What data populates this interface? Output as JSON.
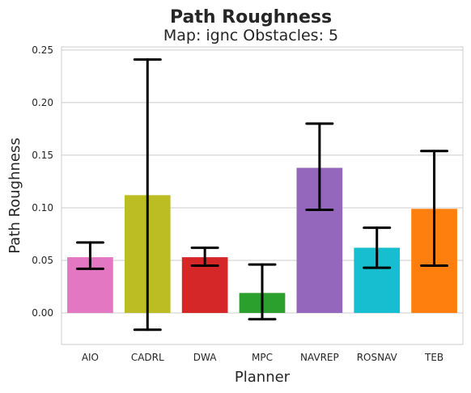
{
  "chart_data": {
    "type": "bar",
    "title": "Path Roughness",
    "subtitle": "Map: ignc Obstacles: 5",
    "xlabel": "Planner",
    "ylabel": "Path Roughness",
    "ylim": [
      -0.03,
      0.253
    ],
    "yticks": [
      "0.00",
      "0.05",
      "0.10",
      "0.15",
      "0.20",
      "0.25"
    ],
    "ytick_values": [
      0.0,
      0.05,
      0.1,
      0.15,
      0.2,
      0.25
    ],
    "grid": true,
    "categories": [
      "AIO",
      "CADRL",
      "DWA",
      "MPC",
      "NAVREP",
      "ROSNAV",
      "TEB"
    ],
    "values": [
      0.053,
      0.112,
      0.053,
      0.019,
      0.138,
      0.062,
      0.099
    ],
    "error_low": [
      0.042,
      -0.016,
      0.045,
      -0.006,
      0.098,
      0.043,
      0.045
    ],
    "error_high": [
      0.067,
      0.241,
      0.062,
      0.046,
      0.18,
      0.081,
      0.154
    ],
    "colors": [
      "#e377c2",
      "#bcbd22",
      "#d62728",
      "#2ca02c",
      "#9467bd",
      "#17becf",
      "#ff7f0e"
    ],
    "grid_color": "#cccccc",
    "frame_color": "#cccccc",
    "errorbar_color": "#000000"
  }
}
